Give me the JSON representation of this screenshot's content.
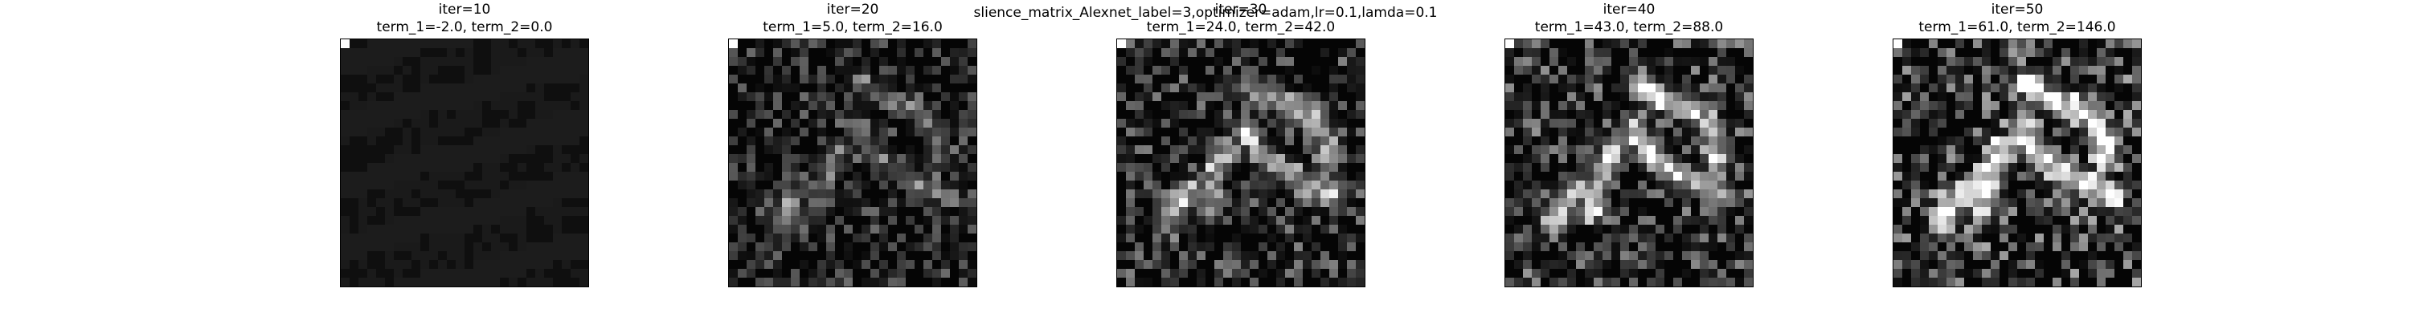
{
  "figure": {
    "suptitle": "slience_matrix_Alexnet_label=3,optimizer=adam,lr=0.1,lamda=0.1"
  },
  "panels": [
    {
      "iter_label": "iter=10",
      "terms_label": "term_1=-2.0, term_2=0.0"
    },
    {
      "iter_label": "iter=20",
      "terms_label": "term_1=5.0, term_2=16.0"
    },
    {
      "iter_label": "iter=30",
      "terms_label": "term_1=24.0, term_2=42.0"
    },
    {
      "iter_label": "iter=40",
      "terms_label": "term_1=43.0, term_2=88.0"
    },
    {
      "iter_label": "iter=50",
      "terms_label": "term_1=61.0, term_2=146.0"
    }
  ],
  "colormap": "gray"
}
